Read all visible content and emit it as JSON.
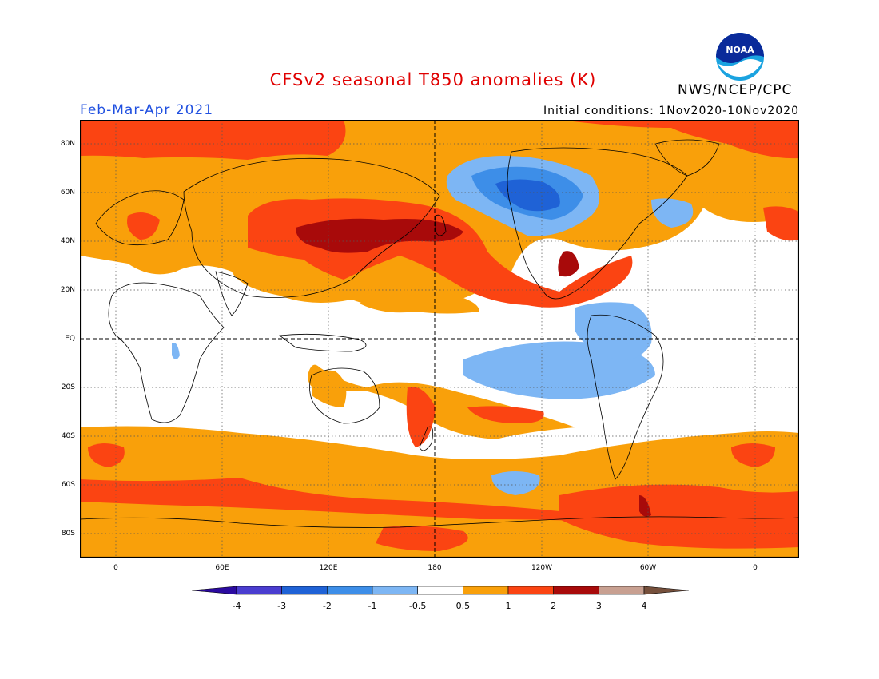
{
  "title": "CFSv2 seasonal T850 anomalies (K)",
  "period": "Feb-Mar-Apr 2021",
  "initial_conditions": "Initial conditions: 1Nov2020-10Nov2020",
  "agency": "NWS/NCEP/CPC",
  "logo_text": "NOAA",
  "lat_labels": [
    "80N",
    "60N",
    "40N",
    "20N",
    "EQ",
    "20S",
    "40S",
    "60S",
    "80S"
  ],
  "lon_labels": [
    "0",
    "60E",
    "120E",
    "180",
    "120W",
    "60W",
    "0"
  ],
  "colorbar": {
    "labels": [
      "-4",
      "-3",
      "-2",
      "-1",
      "-0.5",
      "0.5",
      "1",
      "2",
      "3",
      "4"
    ],
    "colors": [
      "#2b0aa0",
      "#4a3dd0",
      "#1f62d6",
      "#3d8ee8",
      "#7db6f4",
      "#ffffff",
      "#f9a00a",
      "#fb4412",
      "#a80a0a",
      "#c8a091",
      "#76503c"
    ]
  },
  "map_colors": {
    "ocean_neutral": "#ffffff",
    "warm_1": "#f9a00a",
    "warm_2": "#fb4412",
    "warm_3": "#a80a0a",
    "cool_1": "#7db6f4",
    "cool_2": "#3d8ee8",
    "cool_3": "#1f62d6"
  }
}
